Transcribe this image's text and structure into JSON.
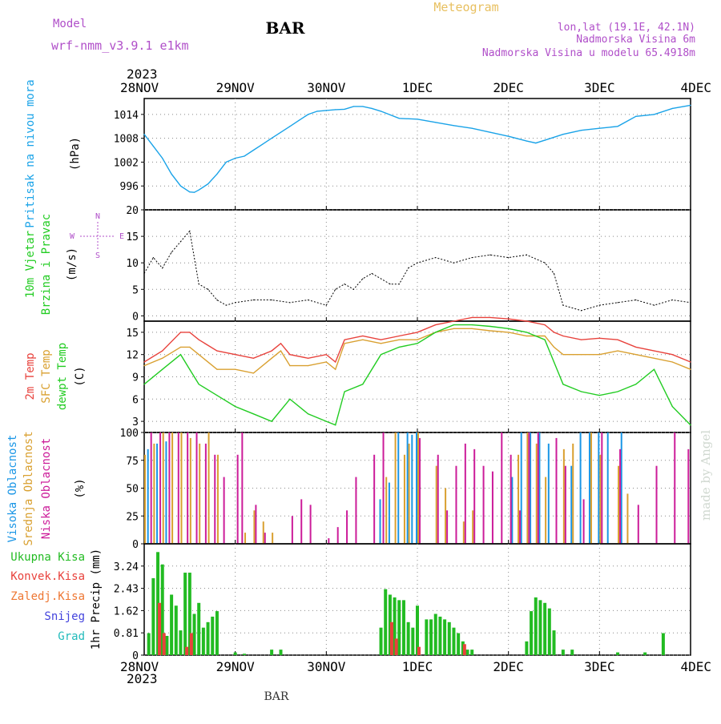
{
  "header": {
    "model_label": "Model",
    "model_name": "wrf-nmm_v3.9.1 e1km",
    "station": "BAR",
    "meteogram": "Meteogram",
    "lonlat": "lon,lat (19.1E, 42.1N)",
    "elevation": "Nadmorska Visina 6m",
    "model_elevation": "Nadmorska Visina u modelu 65.4918m",
    "year_top": "2023",
    "year_bottom": "2023",
    "footer_station": "BAR",
    "credit": "made by Angel"
  },
  "colors": {
    "pressure": "#1aa3e8",
    "temp2m": "#e8423c",
    "sfc_temp": "#d9a030",
    "dewpt": "#22cc22",
    "high_cloud": "#1a96e6",
    "mid_cloud": "#d9a030",
    "low_cloud": "#cc1c99",
    "total_precip": "#22bb22",
    "convective": "#e8423c",
    "frozen": "#ee7733",
    "snow": "#4444dd",
    "grad": "#22bbbb",
    "purple_text": "#b04fc9"
  },
  "chart_data": [
    {
      "type": "line",
      "panel": "pressure",
      "ylabel_lines": [
        "Pritisak na nivou mora"
      ],
      "unit": "(hPa)",
      "ylim": [
        990,
        1018
      ],
      "yticks": [
        "996",
        "1002",
        "1008",
        "1014"
      ],
      "ytick_values": [
        996,
        1002,
        1008,
        1014
      ],
      "x_categories": [
        "28NOV",
        "29NOV",
        "30NOV",
        "1DEC",
        "2DEC",
        "3DEC",
        "4DEC"
      ],
      "grid": true,
      "series": [
        {
          "x": [
            0,
            0.1,
            0.2,
            0.3,
            0.4,
            0.5,
            0.55,
            0.6,
            0.7,
            0.8,
            0.9,
            1.0,
            1.1,
            1.2,
            1.3,
            1.4,
            1.5,
            1.6,
            1.7,
            1.8,
            1.9,
            2.0,
            2.1,
            2.2,
            2.3,
            2.4,
            2.5,
            2.6,
            2.8,
            3.0,
            3.2,
            3.4,
            3.6,
            3.8,
            4.0,
            4.2,
            4.3,
            4.4,
            4.6,
            4.8,
            5.0,
            5.2,
            5.4,
            5.6,
            5.8,
            6.0
          ],
          "values": [
            1009,
            1006,
            1003,
            999,
            996,
            994.5,
            994.4,
            995,
            996.5,
            999,
            1002,
            1003,
            1003.5,
            1005,
            1006.5,
            1008,
            1009.5,
            1011,
            1012.5,
            1014,
            1014.8,
            1015,
            1015.2,
            1015.3,
            1016,
            1016,
            1015.5,
            1014.8,
            1013,
            1012.8,
            1012,
            1011.2,
            1010.5,
            1009.5,
            1008.5,
            1007.3,
            1006.8,
            1007.5,
            1009,
            1010,
            1010.5,
            1011,
            1013.5,
            1014,
            1015.5,
            1016.3
          ]
        }
      ]
    },
    {
      "type": "line",
      "panel": "wind",
      "ylabel_lines": [
        "10m Vjetar",
        "Brzina i Pravac"
      ],
      "unit": "(m/s)",
      "compass": [
        "N",
        "S",
        "E",
        "W"
      ],
      "ylim": [
        -1,
        20
      ],
      "yticks": [
        "0",
        "5",
        "10",
        "15",
        "20"
      ],
      "ytick_values": [
        0,
        5,
        10,
        15,
        20
      ],
      "grid": true,
      "series": [
        {
          "x": [
            0,
            0.1,
            0.2,
            0.3,
            0.4,
            0.5,
            0.6,
            0.7,
            0.8,
            0.9,
            1.0,
            1.2,
            1.4,
            1.6,
            1.8,
            2.0,
            2.1,
            2.2,
            2.3,
            2.4,
            2.5,
            2.6,
            2.7,
            2.8,
            2.9,
            3.0,
            3.2,
            3.4,
            3.6,
            3.8,
            4.0,
            4.2,
            4.4,
            4.5,
            4.6,
            4.8,
            5.0,
            5.2,
            5.4,
            5.6,
            5.8,
            6.0
          ],
          "values": [
            8,
            11,
            9,
            12,
            14,
            16,
            6,
            5,
            3,
            2,
            2.5,
            3,
            3,
            2.5,
            3,
            2,
            5,
            6,
            5,
            7,
            8,
            7,
            6,
            6,
            9,
            10,
            11,
            10,
            11,
            11.5,
            11,
            11.5,
            10,
            8,
            2,
            1,
            2,
            2.5,
            3,
            2,
            3,
            2.5
          ]
        }
      ]
    },
    {
      "type": "line",
      "panel": "temperature",
      "ylabel_lines": [
        "2m Temp",
        "SFC Temp",
        "dewpt Temp"
      ],
      "unit": "(C)",
      "ylim": [
        1.5,
        16.5
      ],
      "yticks": [
        "3",
        "6",
        "9",
        "12",
        "15"
      ],
      "ytick_values": [
        3,
        6,
        9,
        12,
        15
      ],
      "grid": true,
      "series": [
        {
          "name": "2m Temp",
          "x": [
            0,
            0.2,
            0.4,
            0.5,
            0.6,
            0.8,
            1.0,
            1.2,
            1.4,
            1.5,
            1.6,
            1.8,
            2.0,
            2.1,
            2.2,
            2.4,
            2.6,
            2.8,
            3.0,
            3.2,
            3.4,
            3.6,
            3.8,
            4.0,
            4.2,
            4.4,
            4.5,
            4.6,
            4.8,
            5.0,
            5.2,
            5.4,
            5.6,
            5.8,
            6.0
          ],
          "values": [
            11,
            12.5,
            15,
            15,
            14,
            12.5,
            12,
            11.5,
            12.5,
            13.5,
            12,
            11.5,
            12,
            11,
            14,
            14.5,
            14,
            14.5,
            15,
            16,
            16.5,
            17,
            17,
            16.8,
            16.5,
            16,
            15,
            14.5,
            14,
            14.2,
            14,
            13,
            12.5,
            12,
            11
          ]
        },
        {
          "name": "SFC Temp",
          "x": [
            0,
            0.2,
            0.4,
            0.5,
            0.6,
            0.8,
            1.0,
            1.2,
            1.4,
            1.5,
            1.6,
            1.8,
            2.0,
            2.1,
            2.2,
            2.4,
            2.6,
            2.8,
            3.0,
            3.2,
            3.4,
            3.6,
            3.8,
            4.0,
            4.2,
            4.4,
            4.5,
            4.6,
            4.8,
            5.0,
            5.2,
            5.4,
            5.6,
            5.8,
            6.0
          ],
          "values": [
            10.5,
            11.5,
            13,
            13,
            12,
            10,
            10,
            9.5,
            11.5,
            12.5,
            10.5,
            10.5,
            11,
            10,
            13.5,
            14,
            13.5,
            14,
            14,
            15,
            15.5,
            15.5,
            15.2,
            15,
            14.5,
            14.5,
            13,
            12,
            12,
            12,
            12.5,
            12,
            11.5,
            11,
            10
          ]
        },
        {
          "name": "dewpt Temp",
          "x": [
            0,
            0.2,
            0.4,
            0.5,
            0.6,
            0.8,
            1.0,
            1.2,
            1.4,
            1.6,
            1.8,
            2.0,
            2.1,
            2.2,
            2.4,
            2.6,
            2.8,
            3.0,
            3.2,
            3.4,
            3.6,
            3.8,
            4.0,
            4.2,
            4.4,
            4.5,
            4.6,
            4.8,
            5.0,
            5.2,
            5.4,
            5.6,
            5.8,
            6.0
          ],
          "values": [
            8,
            10,
            12,
            10,
            8,
            6.5,
            5,
            4,
            3,
            6,
            4,
            3,
            2.5,
            7,
            8,
            12,
            13,
            13.5,
            15,
            16,
            16,
            15.8,
            15.5,
            15,
            14,
            11,
            8,
            7,
            6.5,
            7,
            8,
            10,
            5,
            2.5
          ]
        }
      ]
    },
    {
      "type": "bar",
      "panel": "cloud_cover",
      "ylabel_lines": [
        "Visoka Oblacnost",
        "Srednja Oblacnost",
        "Niska Oblacnost"
      ],
      "unit": "(%)",
      "ylim": [
        0,
        100
      ],
      "yticks": [
        "0",
        "25",
        "50",
        "75",
        "100"
      ],
      "ytick_values": [
        0,
        25,
        50,
        75,
        100
      ],
      "grid": true,
      "series": [
        {
          "name": "Visoka Oblacnost",
          "x": [
            0.05,
            0.15,
            0.25,
            2.6,
            2.7,
            2.8,
            2.9,
            2.95,
            3.0,
            4.05,
            4.15,
            4.25,
            4.35,
            4.45,
            4.7,
            4.8,
            4.9,
            5.0,
            5.1,
            5.25
          ],
          "values": [
            85,
            90,
            92,
            40,
            55,
            100,
            100,
            98,
            100,
            60,
            100,
            100,
            100,
            90,
            70,
            100,
            100,
            100,
            100,
            100
          ]
        },
        {
          "name": "Srednja Oblacnost",
          "x": [
            0.0,
            0.1,
            0.2,
            0.3,
            0.4,
            0.5,
            0.6,
            0.7,
            0.8,
            1.1,
            1.2,
            1.3,
            1.4,
            2.65,
            2.75,
            2.85,
            2.9,
            3.0,
            3.2,
            3.3,
            3.5,
            3.6,
            4.1,
            4.2,
            4.3,
            4.4,
            4.6,
            4.7,
            4.9,
            5.0,
            5.2,
            5.3
          ],
          "values": [
            80,
            90,
            100,
            100,
            100,
            95,
            90,
            100,
            80,
            10,
            30,
            20,
            10,
            60,
            100,
            80,
            90,
            100,
            70,
            50,
            20,
            30,
            80,
            100,
            90,
            60,
            85,
            90,
            100,
            80,
            70,
            45
          ]
        },
        {
          "name": "Niska Oblacnost",
          "x": [
            0.05,
            0.15,
            0.25,
            0.35,
            0.45,
            0.55,
            0.65,
            0.75,
            0.85,
            1.0,
            1.05,
            1.2,
            1.3,
            1.6,
            1.7,
            1.8,
            2.0,
            2.1,
            2.2,
            2.3,
            2.5,
            2.6,
            3.0,
            3.2,
            3.3,
            3.4,
            3.5,
            3.6,
            3.7,
            3.8,
            3.9,
            4.0,
            4.1,
            4.2,
            4.3,
            4.5,
            4.6,
            4.8,
            5.0,
            5.2,
            5.4,
            5.6,
            5.8,
            5.95
          ],
          "values": [
            100,
            100,
            100,
            100,
            100,
            100,
            90,
            80,
            60,
            80,
            100,
            35,
            10,
            25,
            40,
            35,
            5,
            15,
            30,
            60,
            80,
            100,
            95,
            80,
            30,
            70,
            90,
            85,
            70,
            65,
            100,
            80,
            30,
            100,
            100,
            95,
            70,
            40,
            100,
            85,
            35,
            70,
            100,
            85
          ]
        }
      ]
    },
    {
      "type": "bar",
      "panel": "precipitation",
      "ylabel_lines": [
        "1hr Precip (mm)"
      ],
      "legend": [
        "Ukupna Kisa",
        "Konvek.Kisa",
        "Zaledj.Kisa",
        "Snijeg",
        "Grad"
      ],
      "ylim": [
        0,
        4.05
      ],
      "yticks": [
        "0",
        "0.81",
        "1.62",
        "2.43",
        "3.24"
      ],
      "ytick_values": [
        0,
        0.81,
        1.62,
        2.43,
        3.24
      ],
      "x_categories": [
        "28NOV",
        "29NOV",
        "30NOV",
        "1DEC",
        "2DEC",
        "3DEC",
        "4DEC"
      ],
      "grid": true,
      "series": [
        {
          "name": "Ukupna Kisa",
          "x": [
            0.05,
            0.1,
            0.15,
            0.2,
            0.25,
            0.3,
            0.35,
            0.4,
            0.45,
            0.5,
            0.55,
            0.6,
            0.65,
            0.7,
            0.75,
            0.8,
            1.0,
            1.1,
            1.4,
            1.5,
            2.6,
            2.65,
            2.7,
            2.75,
            2.8,
            2.85,
            2.9,
            2.95,
            3.0,
            3.1,
            3.15,
            3.2,
            3.25,
            3.3,
            3.35,
            3.4,
            3.45,
            3.5,
            3.55,
            3.6,
            4.2,
            4.25,
            4.3,
            4.35,
            4.4,
            4.45,
            4.5,
            4.6,
            4.7,
            5.2,
            5.5,
            5.7
          ],
          "values": [
            0.8,
            2.8,
            3.75,
            3.3,
            0.7,
            2.2,
            1.8,
            0.9,
            3.0,
            3.0,
            1.5,
            1.9,
            1.0,
            1.2,
            1.4,
            1.6,
            0.1,
            0.05,
            0.2,
            0.2,
            1.0,
            2.4,
            2.2,
            2.1,
            2.0,
            2.0,
            1.2,
            1.0,
            1.8,
            1.3,
            1.3,
            1.5,
            1.4,
            1.3,
            1.2,
            1.0,
            0.8,
            0.5,
            0.2,
            0.2,
            0.5,
            1.6,
            2.1,
            2.0,
            1.9,
            1.7,
            0.9,
            0.2,
            0.2,
            0.1,
            0.1,
            0.8
          ]
        },
        {
          "name": "Konvek.Kisa",
          "x": [
            0.15,
            0.2,
            0.45,
            0.5,
            2.7,
            2.75,
            3.0,
            3.5
          ],
          "values": [
            1.9,
            0.8,
            0.3,
            0.8,
            1.2,
            0.6,
            0.3,
            0.4
          ]
        }
      ]
    }
  ]
}
